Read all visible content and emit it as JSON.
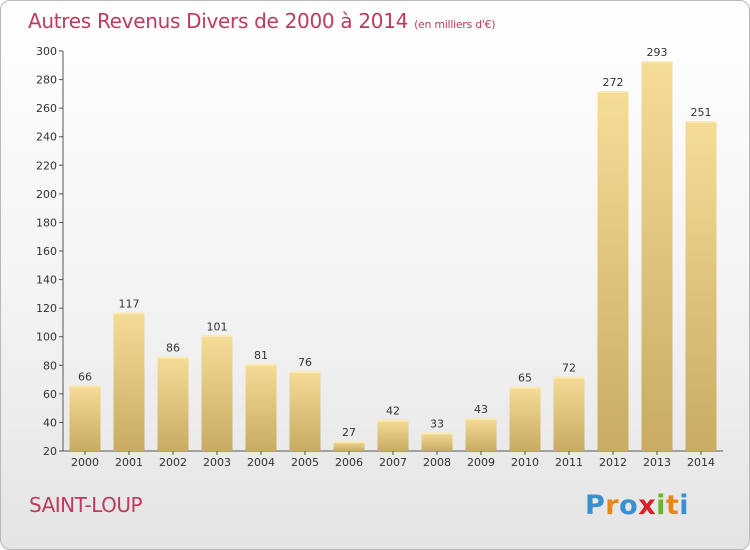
{
  "header": {
    "title": "Autres Revenus Divers de 2000 à 2014",
    "subtitle": "(en milliers d'€)"
  },
  "footer": {
    "commune": "SAINT-LOUP",
    "brand": {
      "letters": [
        "P",
        "r",
        "o",
        "x",
        "i",
        "t",
        "i"
      ],
      "colors": [
        "#3a8fd0",
        "#e8861a",
        "#3a8fd0",
        "#d8202a",
        "#6ab42e",
        "#e8861a",
        "#3a8fd0"
      ]
    }
  },
  "colors": {
    "title": "#bf3a5c",
    "bar": "#e8cf8a",
    "bar_highlight": "#f7e3a6",
    "axis": "#555555"
  },
  "chart_data": {
    "type": "bar",
    "categories": [
      "2000",
      "2001",
      "2002",
      "2003",
      "2004",
      "2005",
      "2006",
      "2007",
      "2008",
      "2009",
      "2010",
      "2011",
      "2012",
      "2013",
      "2014"
    ],
    "values": [
      66,
      117,
      86,
      101,
      81,
      76,
      27,
      42,
      33,
      43,
      65,
      72,
      272,
      293,
      251
    ],
    "ylim": [
      20,
      300
    ],
    "yticks": [
      20,
      40,
      60,
      80,
      100,
      120,
      140,
      160,
      180,
      200,
      220,
      240,
      260,
      280,
      300
    ],
    "grid": false,
    "data_labels": true
  }
}
